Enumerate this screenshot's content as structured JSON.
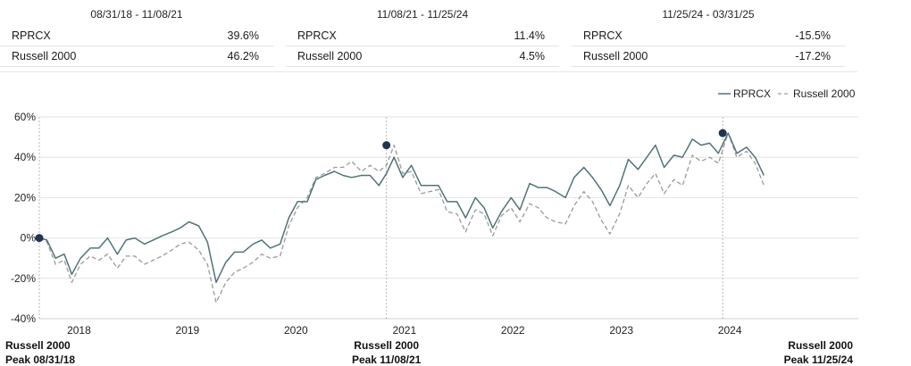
{
  "periods": [
    {
      "range": "08/31/18 - 11/08/21",
      "rows": [
        {
          "name": "RPRCX",
          "value": "39.6%"
        },
        {
          "name": "Russell 2000",
          "value": "46.2%"
        }
      ]
    },
    {
      "range": "11/08/21 - 11/25/24",
      "rows": [
        {
          "name": "RPRCX",
          "value": "11.4%"
        },
        {
          "name": "Russell 2000",
          "value": "4.5%"
        }
      ]
    },
    {
      "range": "11/25/24 - 03/31/25",
      "rows": [
        {
          "name": "RPRCX",
          "value": "-15.5%"
        },
        {
          "name": "Russell 2000",
          "value": "-17.2%"
        }
      ]
    }
  ],
  "colors": {
    "rprcx": "#4f7479",
    "russell": "#9a9a9a",
    "marker": "#1f3552",
    "grid": "#e2e2e2",
    "vline": "#b5b5b5"
  },
  "chart_data": {
    "type": "line",
    "title": "",
    "xlabel": "",
    "ylabel": "",
    "ylim": [
      -40,
      60
    ],
    "yticks": [
      "-40%",
      "-20%",
      "0%",
      "20%",
      "40%",
      "60%"
    ],
    "ytick_values": [
      -40,
      -20,
      0,
      20,
      40,
      60
    ],
    "xlim": [
      2017.7,
      2025.25
    ],
    "xticks": [
      "2018",
      "2019",
      "2020",
      "2021",
      "2022",
      "2023",
      "2024"
    ],
    "xtick_values": [
      2018.0,
      2019.0,
      2020.0,
      2021.0,
      2022.0,
      2023.0,
      2024.0
    ],
    "grid": true,
    "legend": "top-right",
    "series": [
      {
        "name": "RPRCX",
        "style": "solid",
        "x": [
          2017.7,
          2017.77,
          2017.85,
          2017.93,
          2018.0,
          2018.08,
          2018.17,
          2018.25,
          2018.33,
          2018.42,
          2018.5,
          2018.58,
          2018.67,
          2018.75,
          2018.83,
          2018.92,
          2019.0,
          2019.08,
          2019.17,
          2019.25,
          2019.33,
          2019.42,
          2019.5,
          2019.58,
          2019.67,
          2019.75,
          2019.83,
          2019.92,
          2020.0,
          2020.08,
          2020.17,
          2020.25,
          2020.33,
          2020.42,
          2020.5,
          2020.58,
          2020.67,
          2020.75,
          2020.83,
          2020.9,
          2020.97,
          2021.05,
          2021.13,
          2021.22,
          2021.3,
          2021.38,
          2021.46,
          2021.55,
          2021.63,
          2021.72,
          2021.8,
          2021.88,
          2021.96,
          2022.05,
          2022.13,
          2022.22,
          2022.3,
          2022.38,
          2022.46,
          2022.55,
          2022.63,
          2022.72,
          2022.8,
          2022.88,
          2022.96,
          2023.05,
          2023.13,
          2023.22,
          2023.3,
          2023.38,
          2023.46,
          2023.55,
          2023.63,
          2023.72,
          2023.8,
          2023.88,
          2023.96,
          2024.05,
          2024.13,
          2024.22,
          2024.3,
          2024.38
        ],
        "y": [
          0,
          -1,
          -10,
          -8,
          -18,
          -10,
          -5,
          -5,
          0,
          -8,
          -1,
          0,
          -3,
          -1,
          1,
          3,
          5,
          8,
          6,
          -2,
          -22,
          -12,
          -7,
          -7,
          -3,
          -1,
          -5,
          -3,
          10,
          18,
          18,
          29,
          31,
          33,
          31,
          30,
          31,
          31,
          26,
          32,
          40,
          30,
          36,
          26,
          26,
          26,
          18,
          18,
          10,
          20,
          15,
          5,
          13,
          20,
          14,
          27,
          25,
          25,
          23,
          20,
          30,
          35,
          30,
          24,
          16,
          26,
          39,
          34,
          40,
          46,
          35,
          41,
          40,
          49,
          46,
          47,
          42,
          52,
          42,
          45,
          40,
          31
        ]
      },
      {
        "name": "Russell 2000",
        "style": "dashed",
        "x": [
          2017.7,
          2017.77,
          2017.85,
          2017.93,
          2018.0,
          2018.08,
          2018.17,
          2018.25,
          2018.33,
          2018.42,
          2018.5,
          2018.58,
          2018.67,
          2018.75,
          2018.83,
          2018.92,
          2019.0,
          2019.08,
          2019.17,
          2019.25,
          2019.33,
          2019.42,
          2019.5,
          2019.58,
          2019.67,
          2019.75,
          2019.83,
          2019.92,
          2020.0,
          2020.08,
          2020.17,
          2020.25,
          2020.33,
          2020.42,
          2020.5,
          2020.58,
          2020.67,
          2020.75,
          2020.83,
          2020.9,
          2020.97,
          2021.05,
          2021.13,
          2021.22,
          2021.3,
          2021.38,
          2021.46,
          2021.55,
          2021.63,
          2021.72,
          2021.8,
          2021.88,
          2021.96,
          2022.05,
          2022.13,
          2022.22,
          2022.3,
          2022.38,
          2022.46,
          2022.55,
          2022.63,
          2022.72,
          2022.8,
          2022.88,
          2022.96,
          2023.05,
          2023.13,
          2023.22,
          2023.3,
          2023.38,
          2023.46,
          2023.55,
          2023.63,
          2023.72,
          2023.8,
          2023.88,
          2023.96,
          2024.05,
          2024.13,
          2024.22,
          2024.3,
          2024.38
        ],
        "y": [
          0,
          -2,
          -13,
          -11,
          -22,
          -13,
          -9,
          -11,
          -8,
          -15,
          -9,
          -9,
          -13,
          -11,
          -9,
          -6,
          -3,
          -2,
          -6,
          -13,
          -32,
          -22,
          -17,
          -15,
          -12,
          -8,
          -10,
          -9,
          6,
          15,
          20,
          30,
          32,
          35,
          35,
          38,
          33,
          36,
          33,
          36,
          46,
          32,
          33,
          22,
          23,
          24,
          13,
          12,
          3,
          14,
          12,
          1,
          11,
          15,
          8,
          17,
          15,
          10,
          8,
          7,
          16,
          23,
          18,
          9,
          2,
          12,
          26,
          20,
          27,
          32,
          22,
          29,
          26,
          41,
          38,
          40,
          37,
          52,
          40,
          43,
          37,
          26
        ]
      }
    ],
    "peaks": [
      {
        "x": 2017.7,
        "y": 0,
        "line1": "Russell 2000",
        "line2": "Peak 08/31/18"
      },
      {
        "x": 2020.9,
        "y": 46,
        "line1": "Russell 2000",
        "line2": "Peak 11/08/21"
      },
      {
        "x": 2024.0,
        "y": 52,
        "line1": "Russell 2000",
        "line2": "Peak 11/25/24"
      }
    ]
  }
}
